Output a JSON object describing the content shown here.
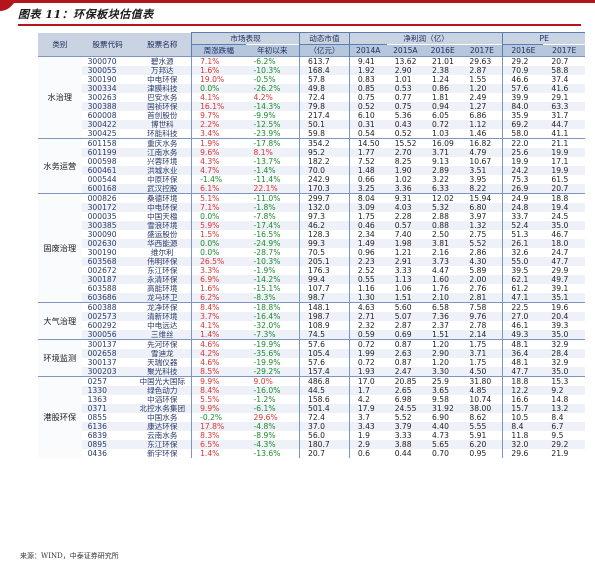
{
  "document": {
    "title": "图表 11：环保板块估值表",
    "source": "来源：WIND，中泰证券研究所"
  },
  "headers": {
    "category": "类别",
    "code": "股票代码",
    "name": "股票名称",
    "market": "市场表现",
    "weekly": "周涨跌幅",
    "ytd": "年初以来",
    "mktcap": "动态市值",
    "mktcap_unit": "（亿元）",
    "profit": "净利润（亿）",
    "pe": "PE",
    "years": [
      "2014A",
      "2015A",
      "2016E",
      "2017E",
      "2016E",
      "2017E"
    ]
  },
  "groups": [
    {
      "name": "水治理",
      "rows": [
        [
          "300070",
          "碧水源",
          "7.1%",
          "-6.2%",
          "613.7",
          "9.41",
          "13.62",
          "21.01",
          "29.63",
          "29.2",
          "20.7"
        ],
        [
          "300055",
          "万邦达",
          "1.6%",
          "-10.3%",
          "168.4",
          "1.92",
          "2.90",
          "2.38",
          "2.87",
          "70.9",
          "58.8"
        ],
        [
          "300190",
          "中电环保",
          "19.0%",
          "-0.5%",
          "57.8",
          "0.83",
          "1.01",
          "1.24",
          "1.55",
          "46.6",
          "37.4"
        ],
        [
          "300334",
          "津膜科技",
          "0.0%",
          "-26.2%",
          "49.8",
          "0.85",
          "0.53",
          "0.86",
          "1.20",
          "57.6",
          "41.6"
        ],
        [
          "300263",
          "巴安水务",
          "4.1%",
          "4.2%",
          "72.4",
          "0.75",
          "0.77",
          "1.81",
          "2.49",
          "39.9",
          "29.1"
        ],
        [
          "300388",
          "国祯环保",
          "16.1%",
          "-14.3%",
          "79.8",
          "0.52",
          "0.75",
          "0.94",
          "1.27",
          "84.0",
          "63.3"
        ],
        [
          "600008",
          "首创股份",
          "9.7%",
          "-9.9%",
          "217.4",
          "6.10",
          "5.36",
          "6.05",
          "6.86",
          "35.9",
          "31.7"
        ],
        [
          "300422",
          "博世科",
          "2.2%",
          "-12.5%",
          "50.1",
          "0.31",
          "0.43",
          "0.72",
          "1.12",
          "69.2",
          "44.7"
        ],
        [
          "300425",
          "环能科技",
          "3.4%",
          "-23.9%",
          "59.8",
          "0.54",
          "0.52",
          "1.03",
          "1.46",
          "58.0",
          "41.1"
        ]
      ]
    },
    {
      "name": "水务运营",
      "rows": [
        [
          "601158",
          "重庆水务",
          "1.9%",
          "-17.8%",
          "354.2",
          "14.50",
          "15.52",
          "16.09",
          "16.82",
          "22.0",
          "21.1"
        ],
        [
          "601199",
          "江南水务",
          "9.6%",
          "8.1%",
          "95.2",
          "1.77",
          "2.70",
          "3.71",
          "4.79",
          "25.6",
          "19.9"
        ],
        [
          "000598",
          "兴蓉环境",
          "4.3%",
          "-13.7%",
          "182.2",
          "7.52",
          "8.25",
          "9.13",
          "10.67",
          "19.9",
          "17.1"
        ],
        [
          "600461",
          "洪城水业",
          "4.7%",
          "-1.4%",
          "70.0",
          "1.48",
          "1.90",
          "2.89",
          "3.51",
          "24.2",
          "19.9"
        ],
        [
          "000544",
          "中原环保",
          "-1.4%",
          "-11.4%",
          "242.9",
          "0.66",
          "1.02",
          "3.22",
          "3.95",
          "75.3",
          "61.5"
        ],
        [
          "600168",
          "武汉控股",
          "6.1%",
          "22.1%",
          "170.3",
          "3.25",
          "3.36",
          "6.33",
          "8.22",
          "26.9",
          "20.7"
        ]
      ]
    },
    {
      "name": "固废治理",
      "rows": [
        [
          "000826",
          "桑德环境",
          "5.1%",
          "-11.0%",
          "299.7",
          "8.04",
          "9.31",
          "12.02",
          "15.94",
          "24.9",
          "18.8"
        ],
        [
          "300172",
          "中电环保",
          "7.1%",
          "-1.8%",
          "132.0",
          "3.09",
          "4.03",
          "5.32",
          "6.80",
          "24.8",
          "19.4"
        ],
        [
          "000035",
          "中国天楹",
          "0.0%",
          "-7.8%",
          "97.3",
          "1.75",
          "2.28",
          "2.88",
          "3.97",
          "33.7",
          "24.5"
        ],
        [
          "300385",
          "雪浪环境",
          "5.9%",
          "-17.4%",
          "46.2",
          "0.46",
          "0.57",
          "0.88",
          "1.32",
          "52.4",
          "35.0"
        ],
        [
          "300090",
          "盛运股份",
          "1.5%",
          "-16.5%",
          "128.3",
          "2.34",
          "7.40",
          "2.50",
          "2.75",
          "51.3",
          "46.7"
        ],
        [
          "002630",
          "华西能源",
          "0.0%",
          "-24.9%",
          "99.3",
          "1.49",
          "1.98",
          "3.81",
          "5.52",
          "26.1",
          "18.0"
        ],
        [
          "300190",
          "维尔利",
          "0.0%",
          "-28.7%",
          "70.5",
          "0.96",
          "1.21",
          "2.16",
          "2.86",
          "32.6",
          "24.7"
        ],
        [
          "603568",
          "伟明环保",
          "26.5%",
          "-10.3%",
          "205.1",
          "2.23",
          "2.91",
          "3.73",
          "4.30",
          "55.0",
          "47.7"
        ],
        [
          "002672",
          "东江环保",
          "3.3%",
          "-1.9%",
          "176.3",
          "2.52",
          "3.33",
          "4.47",
          "5.89",
          "39.5",
          "29.9"
        ],
        [
          "300187",
          "永清环保",
          "6.9%",
          "-14.2%",
          "99.4",
          "0.55",
          "1.13",
          "1.60",
          "2.00",
          "62.1",
          "49.7"
        ],
        [
          "603588",
          "高能环境",
          "1.6%",
          "-15.1%",
          "107.7",
          "1.16",
          "1.06",
          "1.76",
          "2.76",
          "61.2",
          "39.1"
        ],
        [
          "603686",
          "龙马环卫",
          "6.2%",
          "-8.3%",
          "98.7",
          "1.30",
          "1.51",
          "2.10",
          "2.81",
          "47.1",
          "35.1"
        ]
      ]
    },
    {
      "name": "大气治理",
      "rows": [
        [
          "600388",
          "龙净环保",
          "8.4%",
          "-18.8%",
          "148.1",
          "4.63",
          "5.60",
          "6.58",
          "7.58",
          "22.5",
          "19.6"
        ],
        [
          "002573",
          "清新环境",
          "3.7%",
          "-16.4%",
          "198.7",
          "2.71",
          "5.07",
          "7.36",
          "9.76",
          "27.0",
          "20.4"
        ],
        [
          "600292",
          "中电远达",
          "4.1%",
          "-32.0%",
          "108.9",
          "2.32",
          "2.87",
          "2.37",
          "2.78",
          "46.1",
          "39.3"
        ],
        [
          "300056",
          "三维丝",
          "1.4%",
          "-7.3%",
          "74.5",
          "0.59",
          "0.69",
          "1.51",
          "2.14",
          "49.3",
          "35.0"
        ]
      ]
    },
    {
      "name": "环境监测",
      "rows": [
        [
          "300137",
          "先河环保",
          "4.6%",
          "-19.9%",
          "57.6",
          "0.72",
          "0.87",
          "1.20",
          "1.75",
          "48.1",
          "32.9"
        ],
        [
          "002658",
          "雪迪龙",
          "4.2%",
          "-35.6%",
          "105.4",
          "1.99",
          "2.63",
          "2.90",
          "3.71",
          "36.4",
          "28.4"
        ],
        [
          "300137",
          "天瑞仪器",
          "4.6%",
          "-19.9%",
          "57.6",
          "0.72",
          "0.87",
          "1.20",
          "1.75",
          "48.1",
          "32.9"
        ],
        [
          "300203",
          "聚光科技",
          "8.5%",
          "-29.2%",
          "157.4",
          "1.93",
          "2.47",
          "3.30",
          "4.50",
          "47.7",
          "35.0"
        ]
      ]
    },
    {
      "name": "港股环保",
      "rows": [
        [
          "0257",
          "中国光大国际",
          "9.9%",
          "9.0%",
          "486.8",
          "17.0",
          "20.85",
          "25.9",
          "31.80",
          "18.8",
          "15.3"
        ],
        [
          "1330",
          "绿色动力",
          "8.4%",
          "-16.0%",
          "44.5",
          "1.7",
          "2.65",
          "3.65",
          "4.85",
          "12.2",
          "9.2"
        ],
        [
          "1363",
          "中滔环保",
          "5.5%",
          "-1.2%",
          "158.6",
          "4.2",
          "6.98",
          "9.58",
          "10.74",
          "16.6",
          "14.8"
        ],
        [
          "0371",
          "北控水务集团",
          "9.9%",
          "-6.1%",
          "501.4",
          "17.9",
          "24.55",
          "31.92",
          "38.00",
          "15.7",
          "13.2"
        ],
        [
          "0855",
          "中国水务",
          "-0.2%",
          "29.6%",
          "72.4",
          "3.7",
          "5.52",
          "6.90",
          "8.62",
          "10.5",
          "8.4"
        ],
        [
          "6136",
          "康达环保",
          "17.8%",
          "-4.8%",
          "37.0",
          "3.43",
          "3.79",
          "4.40",
          "5.55",
          "8.4",
          "6.7"
        ],
        [
          "6839",
          "云南水务",
          "8.3%",
          "-8.9%",
          "56.0",
          "1.9",
          "3.33",
          "4.73",
          "5.91",
          "11.8",
          "9.5"
        ],
        [
          "0895",
          "东江环保",
          "6.5%",
          "-4.3%",
          "180.7",
          "2.9",
          "3.88",
          "5.65",
          "6.20",
          "32.0",
          "29.2"
        ],
        [
          "0436",
          "新宇环保",
          "1.4%",
          "-13.6%",
          "20.7",
          "0.6",
          "0.44",
          "0.70",
          "0.95",
          "29.6",
          "21.9"
        ]
      ]
    }
  ],
  "colors": {
    "accent": "#b4141b",
    "header": "#c9d3e2",
    "up": "#e0332f",
    "down": "#1a8b2a"
  }
}
